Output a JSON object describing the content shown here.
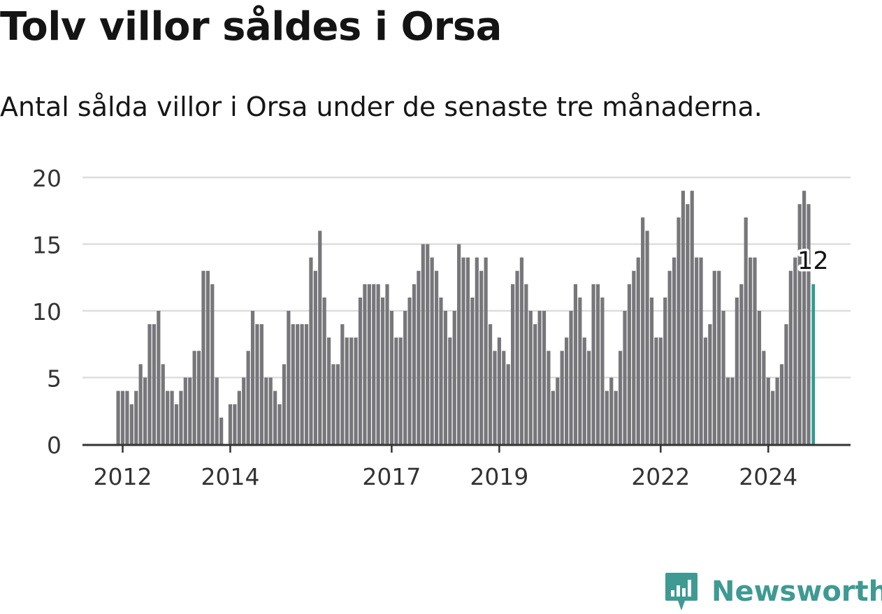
{
  "title": "Tolv villor såldes i Orsa",
  "subtitle": "Antal sålda villor i Orsa under de senaste tre månaderna.",
  "brand": "Newsworthy",
  "colors": {
    "bar": "#77777b",
    "highlight": "#2a9d8f",
    "grid": "#dddddd",
    "axis": "#333333",
    "brand": "#3e9a92"
  },
  "chart_data": {
    "type": "bar",
    "start": "2011-12",
    "values": [
      4,
      4,
      4,
      3,
      4,
      6,
      5,
      9,
      9,
      10,
      6,
      4,
      4,
      3,
      4,
      5,
      5,
      7,
      7,
      13,
      13,
      12,
      5,
      2,
      0,
      3,
      3,
      4,
      5,
      7,
      10,
      9,
      9,
      5,
      5,
      4,
      3,
      6,
      10,
      9,
      9,
      9,
      9,
      14,
      13,
      16,
      11,
      8,
      6,
      6,
      9,
      8,
      8,
      8,
      11,
      12,
      12,
      12,
      12,
      11,
      12,
      10,
      8,
      8,
      10,
      11,
      12,
      13,
      15,
      15,
      14,
      13,
      11,
      10,
      8,
      10,
      15,
      14,
      14,
      11,
      14,
      13,
      14,
      9,
      7,
      8,
      7,
      6,
      12,
      13,
      14,
      12,
      10,
      9,
      10,
      10,
      7,
      4,
      5,
      7,
      8,
      10,
      12,
      11,
      8,
      7,
      12,
      12,
      11,
      4,
      5,
      4,
      7,
      10,
      12,
      13,
      14,
      17,
      16,
      11,
      8,
      8,
      11,
      13,
      14,
      17,
      19,
      18,
      19,
      14,
      14,
      8,
      9,
      13,
      13,
      10,
      5,
      5,
      11,
      12,
      17,
      14,
      14,
      10,
      7,
      5,
      4,
      5,
      6,
      9,
      13,
      14,
      18,
      19,
      18,
      12
    ],
    "highlight_label": "12",
    "x_ticks": [
      "2012",
      "2014",
      "2017",
      "2019",
      "2022",
      "2024"
    ],
    "y_ticks": [
      "0",
      "5",
      "10",
      "15",
      "20"
    ],
    "ylim": [
      0,
      20
    ],
    "grid": true
  }
}
